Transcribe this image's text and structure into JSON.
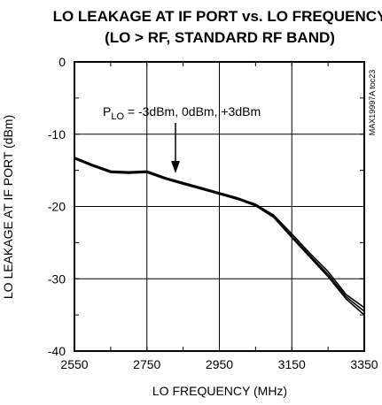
{
  "chart_data": {
    "type": "line",
    "title_line1": "LO LEAKAGE AT IF PORT vs. LO FREQUENCY",
    "title_line2": "(LO > RF, STANDARD RF BAND)",
    "xlabel": "LO FREQUENCY (MHz)",
    "ylabel": "LO LEAKAGE AT IF PORT (dBm)",
    "xlim": [
      2550,
      3350
    ],
    "ylim": [
      -40,
      0
    ],
    "xticks": [
      "2550",
      "2750",
      "2950",
      "3150",
      "3350"
    ],
    "yticks": [
      "0",
      "-10",
      "-20",
      "-30",
      "-40"
    ],
    "grid": true,
    "annotation": {
      "prefix": "P",
      "subscript": "LO",
      "text": " = -3dBm, 0dBm, +3dBm"
    },
    "side_label": "MAX19997A toc23",
    "x": [
      2550,
      2600,
      2650,
      2700,
      2750,
      2800,
      2850,
      2900,
      2950,
      3000,
      3050,
      3100,
      3150,
      3200,
      3250,
      3300,
      3350
    ],
    "series": [
      {
        "values": [
          -13.2,
          -14.2,
          -15.1,
          -15.2,
          -15.1,
          -16.0,
          -16.7,
          -17.4,
          -18.1,
          -18.8,
          -19.7,
          -21.2,
          -23.8,
          -26.5,
          -29.0,
          -32.2,
          -34.0
        ]
      },
      {
        "values": [
          -13.3,
          -14.3,
          -15.2,
          -15.3,
          -15.2,
          -16.1,
          -16.8,
          -17.5,
          -18.2,
          -18.9,
          -19.8,
          -21.4,
          -24.1,
          -26.8,
          -29.4,
          -32.5,
          -34.5
        ]
      },
      {
        "values": [
          -13.4,
          -14.4,
          -15.3,
          -15.4,
          -15.3,
          -16.2,
          -16.9,
          -17.6,
          -18.3,
          -19.0,
          -19.9,
          -21.5,
          -24.3,
          -27.0,
          -29.7,
          -32.8,
          -35.0
        ]
      }
    ]
  }
}
